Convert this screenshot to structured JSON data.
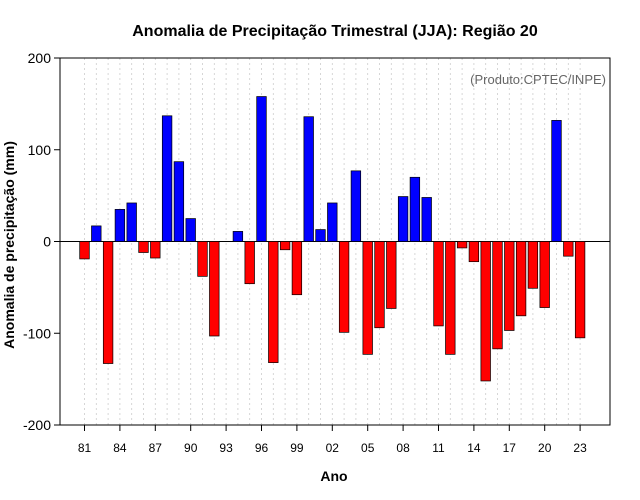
{
  "chart_data": {
    "type": "bar",
    "title": "Anomalia de Precipitação Trimestral (JJA): Região 20",
    "annotation": "(Produto:CPTEC/INPE)",
    "xlabel": "Ano",
    "ylabel": "Anomalia de precipitação (mm)",
    "ylim": [
      -200,
      200
    ],
    "yticks": [
      -200,
      -100,
      0,
      100,
      200
    ],
    "xtick_labels": [
      "81",
      "84",
      "87",
      "90",
      "93",
      "96",
      "99",
      "02",
      "05",
      "08",
      "11",
      "14",
      "17",
      "20",
      "23"
    ],
    "xtick_years": [
      1981,
      1984,
      1987,
      1990,
      1993,
      1996,
      1999,
      2002,
      2005,
      2008,
      2011,
      2014,
      2017,
      2020,
      2023
    ],
    "grid": "vertical dotted lines at each year",
    "years": [
      1981,
      1982,
      1983,
      1984,
      1985,
      1986,
      1987,
      1988,
      1989,
      1990,
      1991,
      1992,
      1993,
      1994,
      1995,
      1996,
      1997,
      1998,
      1999,
      2000,
      2001,
      2002,
      2003,
      2004,
      2005,
      2006,
      2007,
      2008,
      2009,
      2010,
      2011,
      2012,
      2013,
      2014,
      2015,
      2016,
      2017,
      2018,
      2019,
      2020,
      2021,
      2022,
      2023
    ],
    "values": [
      -19,
      17,
      -133,
      35,
      42,
      -12,
      -18,
      137,
      87,
      25,
      -38,
      -103,
      0,
      11,
      -46,
      158,
      -132,
      -9,
      -58,
      136,
      13,
      42,
      -99,
      77,
      -123,
      -94,
      -73,
      49,
      70,
      48,
      -92,
      -123,
      -7,
      -22,
      -152,
      -117,
      -97,
      -81,
      -51,
      -72,
      132,
      -16,
      -105
    ],
    "colors": {
      "positive": "#0000ff",
      "negative": "#ff0000",
      "zero_line": "#000000",
      "grid": "#cccccc",
      "annotation": "#666666"
    }
  }
}
